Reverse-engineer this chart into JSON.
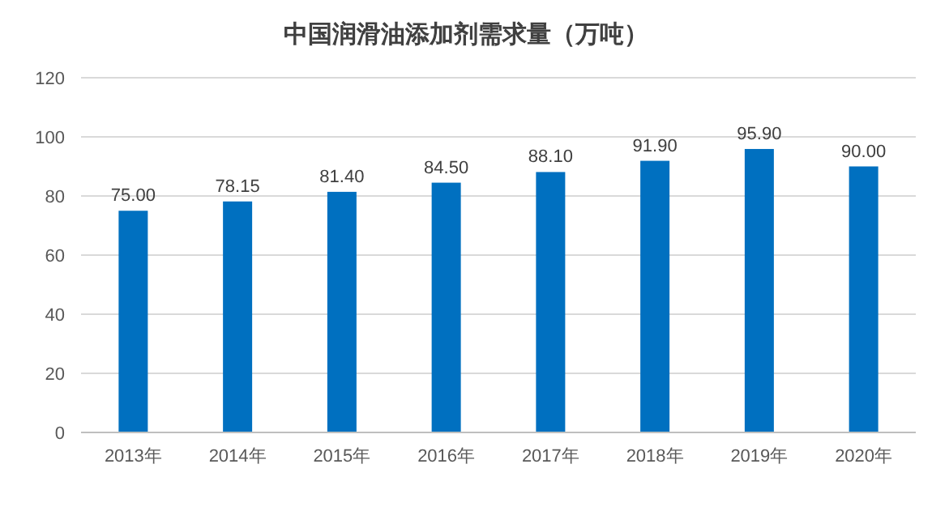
{
  "chart_data": {
    "type": "bar",
    "title": "中国润滑油添加剂需求量（万吨）",
    "categories": [
      "2013年",
      "2014年",
      "2015年",
      "2016年",
      "2017年",
      "2018年",
      "2019年",
      "2020年"
    ],
    "values": [
      75.0,
      78.15,
      81.4,
      84.5,
      88.1,
      91.9,
      95.9,
      90.0
    ],
    "value_labels": [
      "75.00",
      "78.15",
      "81.40",
      "84.50",
      "88.10",
      "91.90",
      "95.90",
      "90.00"
    ],
    "color": "#0070c0",
    "ylim": [
      0,
      120
    ],
    "yticks": [
      0,
      20,
      40,
      60,
      80,
      100,
      120
    ],
    "grid": "y"
  }
}
